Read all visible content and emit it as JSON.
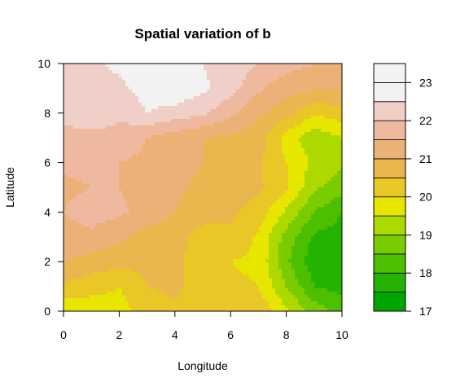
{
  "chart_data": {
    "type": "heatmap",
    "subtype": "filled-contour",
    "title": "Spatial variation of b",
    "xlabel": "Longitude",
    "ylabel": "Latitude",
    "xlim": [
      0,
      10
    ],
    "ylim": [
      0,
      10
    ],
    "xticks": [
      "0",
      "2",
      "4",
      "6",
      "8",
      "10"
    ],
    "yticks": [
      "0",
      "2",
      "4",
      "6",
      "8",
      "10"
    ],
    "x": [
      0,
      1,
      2,
      3,
      4,
      5,
      6,
      7,
      8,
      9,
      10
    ],
    "y": [
      0,
      1,
      2,
      3,
      4,
      5,
      6,
      7,
      8,
      9,
      10
    ],
    "z": [
      [
        19.6,
        19.7,
        19.8,
        20.2,
        20.4,
        20.2,
        20.3,
        20.4,
        19.6,
        18.8,
        18.3
      ],
      [
        20.4,
        20.2,
        20.0,
        20.5,
        20.6,
        20.3,
        20.1,
        20.0,
        19.0,
        18.0,
        17.8
      ],
      [
        21.0,
        20.8,
        20.7,
        20.6,
        20.7,
        20.1,
        20.0,
        19.9,
        18.6,
        17.7,
        17.5
      ],
      [
        21.3,
        21.4,
        21.1,
        20.8,
        20.7,
        20.3,
        20.4,
        19.9,
        18.8,
        17.9,
        17.8
      ],
      [
        21.5,
        21.7,
        21.6,
        21.3,
        21.0,
        20.7,
        20.6,
        20.3,
        19.4,
        18.5,
        18.0
      ],
      [
        21.4,
        21.5,
        21.5,
        21.3,
        21.1,
        20.9,
        20.7,
        20.6,
        20.1,
        19.1,
        18.7
      ],
      [
        21.6,
        21.6,
        21.5,
        21.4,
        21.2,
        21.0,
        20.9,
        20.6,
        20.0,
        19.4,
        19.1
      ],
      [
        21.8,
        21.8,
        21.8,
        21.5,
        21.2,
        21.0,
        20.9,
        20.7,
        19.8,
        19.1,
        19.5
      ],
      [
        22.2,
        22.4,
        22.1,
        22.5,
        22.3,
        22.1,
        21.6,
        21.1,
        20.7,
        20.1,
        20.3
      ],
      [
        22.3,
        22.3,
        22.4,
        22.7,
        22.9,
        22.6,
        22.2,
        21.6,
        21.2,
        21.1,
        21.0
      ],
      [
        22.5,
        22.4,
        22.6,
        22.7,
        22.5,
        22.5,
        22.3,
        22.0,
        21.7,
        21.5,
        21.4
      ]
    ],
    "levels": [
      17,
      17.5,
      18,
      18.5,
      19,
      19.5,
      20,
      20.5,
      21,
      21.5,
      22,
      22.5,
      23,
      23.5
    ],
    "colors": [
      "#00A600",
      "#24B300",
      "#4CBF00",
      "#7ACC00",
      "#ADD900",
      "#E6E600",
      "#E8C727",
      "#EAB64E",
      "#ECB176",
      "#EEB99F",
      "#F0CFC8",
      "#F2F2F2",
      "#F2F2F2"
    ],
    "colorbar_ticks": [
      "17",
      "18",
      "19",
      "20",
      "21",
      "22",
      "23"
    ],
    "colorbar_values": [
      17,
      18,
      19,
      20,
      21,
      22,
      23
    ]
  }
}
